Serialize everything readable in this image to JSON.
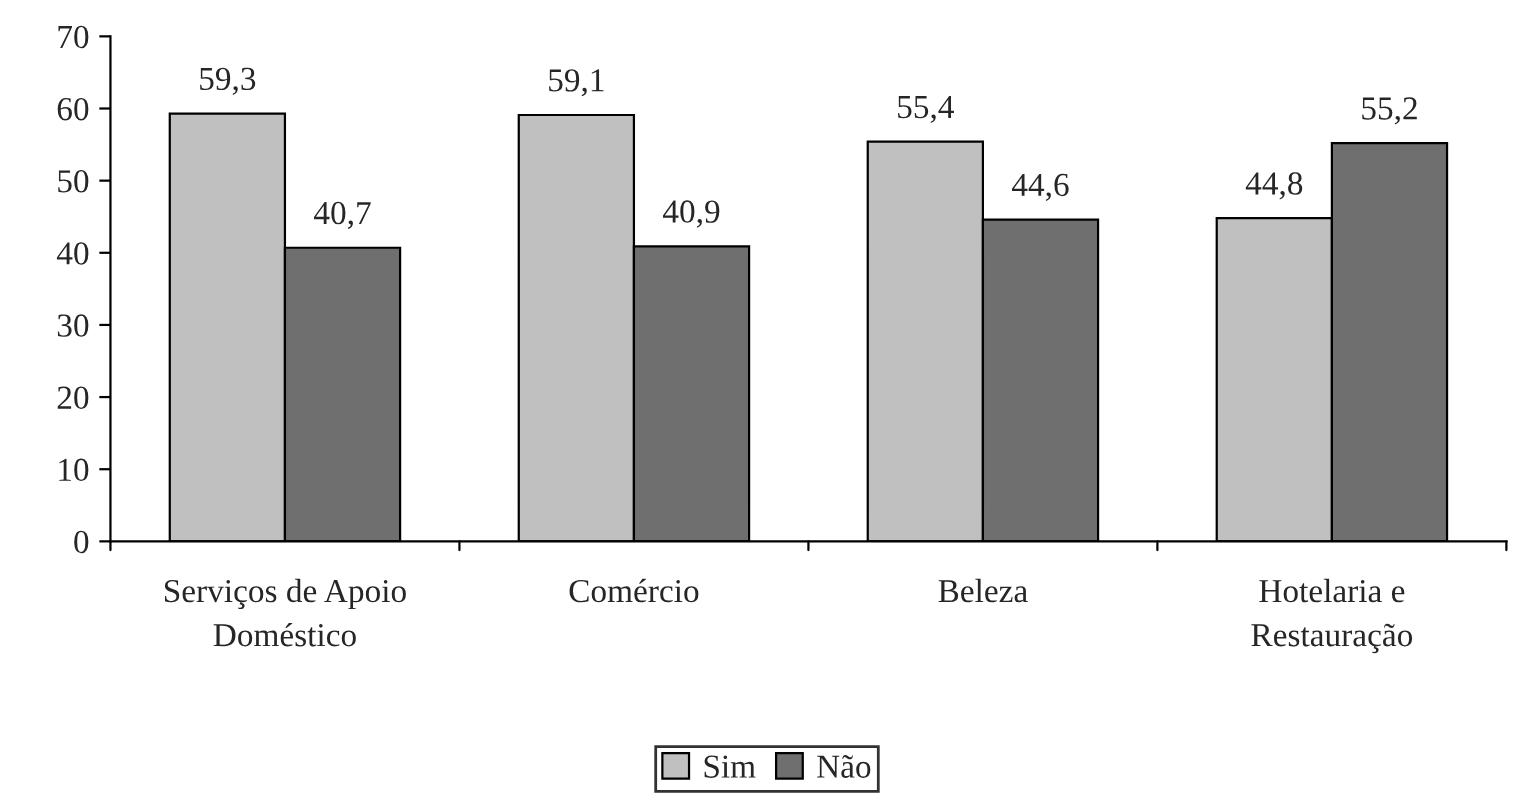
{
  "chart_data": {
    "type": "bar",
    "categories": [
      "Serviços de Apoio\nDoméstico",
      "Comércio",
      "Beleza",
      "Hotelaria e\nRestauração"
    ],
    "series": [
      {
        "name": "Sim",
        "color": "#c0c0c0",
        "values": [
          59.3,
          59.1,
          55.4,
          44.8
        ],
        "value_labels": [
          "59,3",
          "59,1",
          "55,4",
          "44,8"
        ]
      },
      {
        "name": "Não",
        "color": "#6f6f6f",
        "values": [
          40.7,
          40.9,
          44.6,
          55.2
        ],
        "value_labels": [
          "40,7",
          "40,9",
          "44,6",
          "55,2"
        ]
      }
    ],
    "ylim": [
      0,
      70
    ],
    "yticks": [
      0,
      10,
      20,
      30,
      40,
      50,
      60,
      70
    ],
    "grid": false,
    "legend": "bottom"
  }
}
